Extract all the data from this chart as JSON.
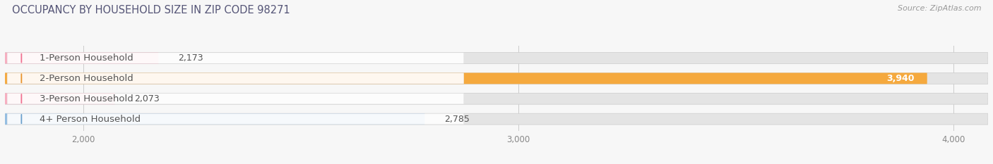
{
  "title": "OCCUPANCY BY HOUSEHOLD SIZE IN ZIP CODE 98271",
  "source": "Source: ZipAtlas.com",
  "categories": [
    "1-Person Household",
    "2-Person Household",
    "3-Person Household",
    "4+ Person Household"
  ],
  "values": [
    2173,
    3940,
    2073,
    2785
  ],
  "bar_colors": [
    "#f7aec0",
    "#f5a93e",
    "#f7aec0",
    "#93bde2"
  ],
  "dot_colors": [
    "#f07090",
    "#e8922a",
    "#f07090",
    "#6a9fcc"
  ],
  "xlim_min": 1820,
  "xlim_max": 4080,
  "xticks": [
    2000,
    3000,
    4000
  ],
  "background_color": "#f7f7f7",
  "bar_bg_color": "#e4e4e4",
  "title_fontsize": 10.5,
  "label_fontsize": 9.5,
  "value_fontsize": 9,
  "source_fontsize": 8,
  "title_color": "#555577",
  "source_color": "#999999",
  "label_color": "#555555",
  "value_color_dark": "#555555",
  "value_color_light": "#ffffff"
}
